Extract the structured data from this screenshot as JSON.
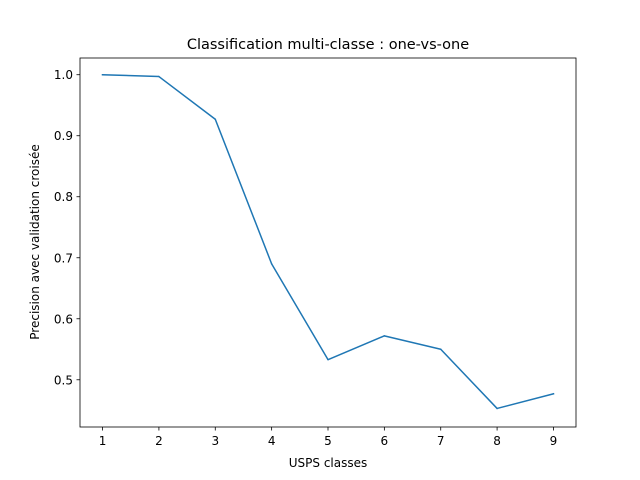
{
  "chart_data": {
    "type": "line",
    "title": "Classification multi-classe : one-vs-one",
    "xlabel": "USPS classes",
    "ylabel": "Precision avec validation croisée",
    "x": [
      1,
      2,
      3,
      4,
      5,
      6,
      7,
      8,
      9
    ],
    "series": [
      {
        "values": [
          1.0,
          0.997,
          0.927,
          0.69,
          0.533,
          0.572,
          0.55,
          0.453,
          0.477
        ],
        "color": "#1f77b4"
      }
    ],
    "xlim": [
      0.6,
      9.4
    ],
    "ylim": [
      0.4226,
      1.0274
    ],
    "xticks": [
      1,
      2,
      3,
      4,
      5,
      6,
      7,
      8,
      9
    ],
    "yticks": [
      0.5,
      0.6,
      0.7,
      0.8,
      0.9,
      1.0
    ],
    "ytick_labels": [
      "0.5",
      "0.6",
      "0.7",
      "0.8",
      "0.9",
      "1.0"
    ],
    "grid": false,
    "legend": "none"
  }
}
